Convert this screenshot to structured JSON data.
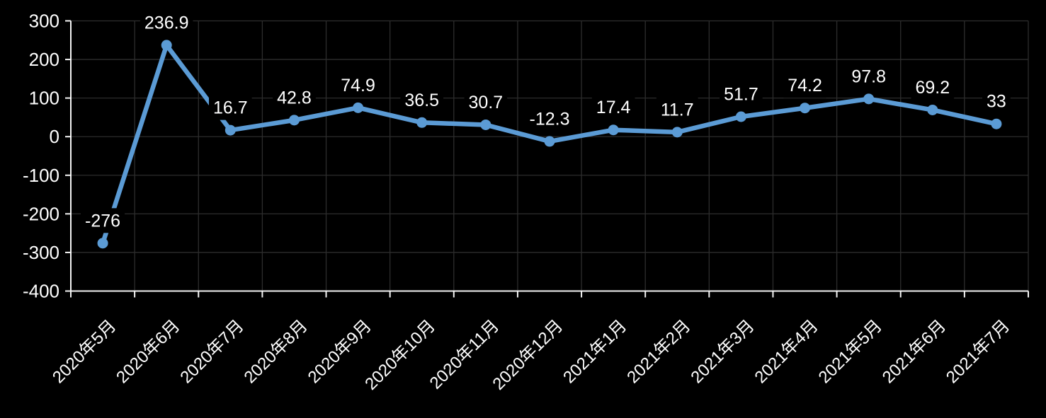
{
  "chart_data": {
    "type": "line",
    "title": "",
    "xlabel": "",
    "ylabel": "",
    "categories": [
      "2020年5月",
      "2020年6月",
      "2020年7月",
      "2020年8月",
      "2020年9月",
      "2020年10月",
      "2020年11月",
      "2020年12月",
      "2021年1月",
      "2021年2月",
      "2021年3月",
      "2021年4月",
      "2021年5月",
      "2021年6月",
      "2021年7月"
    ],
    "values": [
      -276,
      236.9,
      16.7,
      42.8,
      74.9,
      36.5,
      30.7,
      -12.3,
      17.4,
      11.7,
      51.7,
      74.2,
      97.8,
      69.2,
      33
    ],
    "data_labels": [
      "-276",
      "236.9",
      "16.7",
      "42.8",
      "74.9",
      "36.5",
      "30.7",
      "-12.3",
      "17.4",
      "11.7",
      "51.7",
      "74.2",
      "97.8",
      "69.2",
      "33"
    ],
    "y_ticks": [
      300,
      200,
      100,
      0,
      -100,
      -200,
      -300,
      -400
    ],
    "y_tick_labels": [
      "300",
      "200",
      "100",
      "0",
      "-100",
      "-200",
      "-300",
      "-400"
    ],
    "ylim": [
      -400,
      300
    ],
    "grid": true,
    "legend": "none",
    "marker": "circle",
    "x_label_rotation_deg": -45,
    "colors": {
      "line": "#5B9BD5",
      "marker": "#5B9BD5",
      "background": "#000000",
      "gridline": "#2D2D2D",
      "axis": "#F5F5F5",
      "tick": "#F5F5F5",
      "label_text": "#FFFFFF",
      "label_bg": "#000000",
      "axis_text": "#FFFFFF"
    }
  }
}
